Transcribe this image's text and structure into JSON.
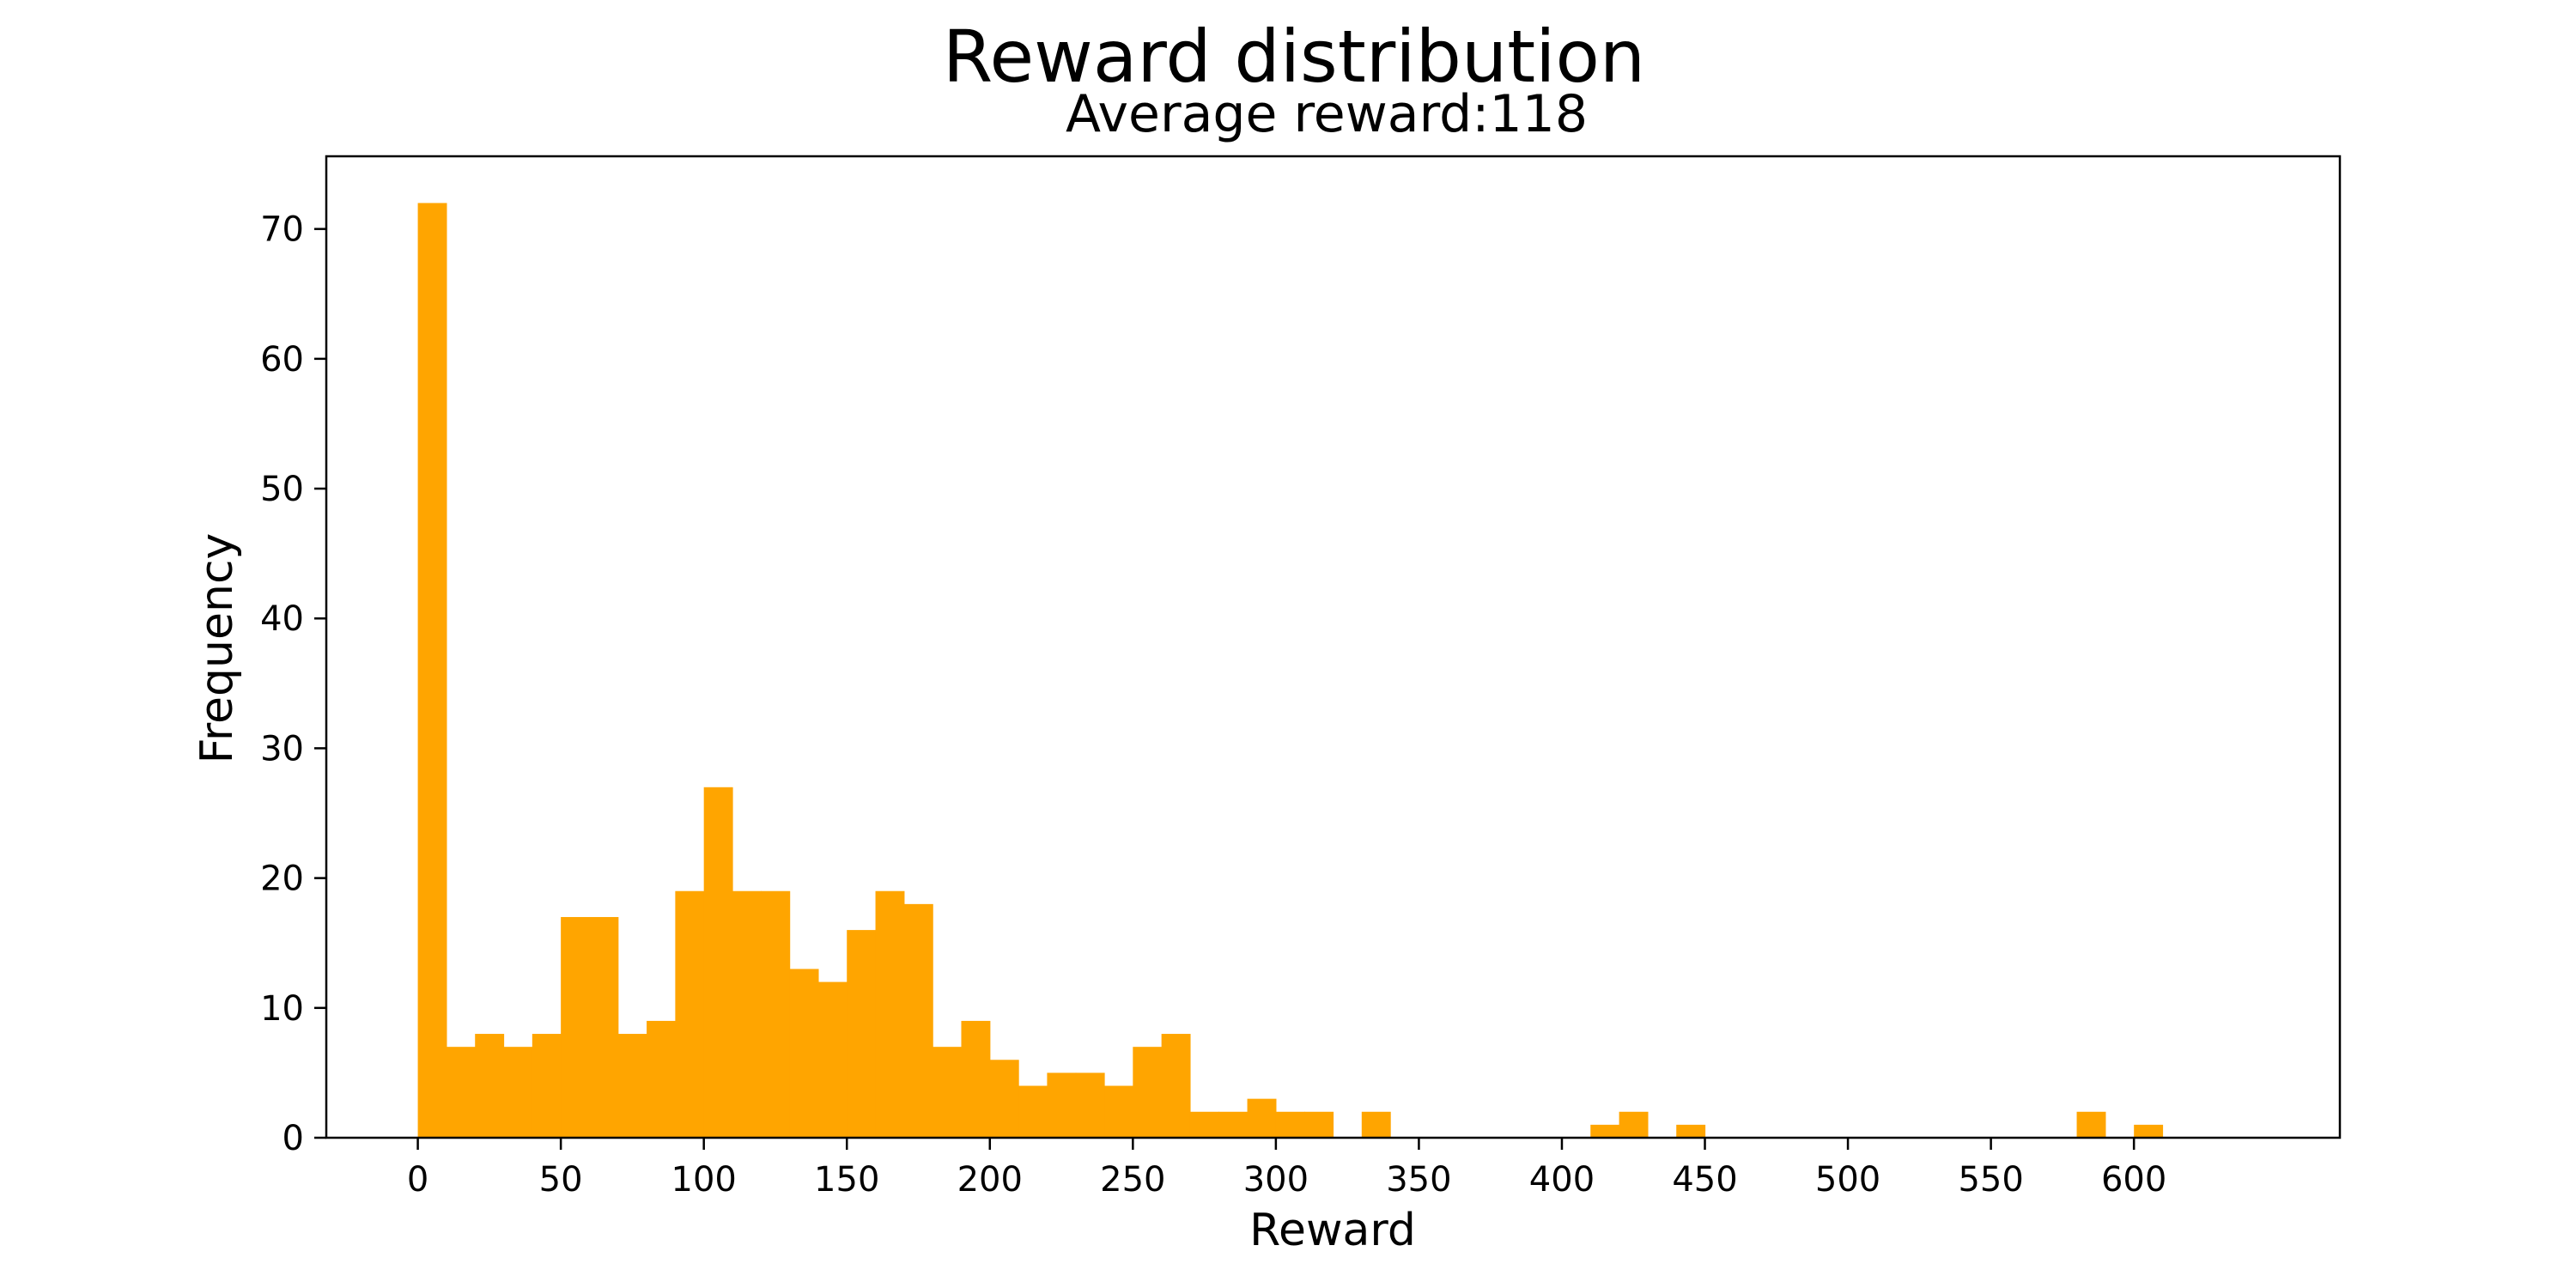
{
  "chart_data": {
    "type": "bar",
    "title": "Reward distribution",
    "subtitle": "Average reward:118",
    "xlabel": "Reward",
    "ylabel": "Frequency",
    "bar_color": "#FFA500",
    "bin_width": 10,
    "xlim": [
      -32,
      672
    ],
    "ylim": [
      0,
      75.6
    ],
    "xticks": [
      0,
      50,
      100,
      150,
      200,
      250,
      300,
      350,
      400,
      450,
      500,
      550,
      600
    ],
    "yticks": [
      0,
      10,
      20,
      30,
      40,
      50,
      60,
      70
    ],
    "bins": [
      {
        "x0": 0,
        "x1": 10,
        "count": 72
      },
      {
        "x0": 10,
        "x1": 20,
        "count": 7
      },
      {
        "x0": 20,
        "x1": 30,
        "count": 8
      },
      {
        "x0": 30,
        "x1": 40,
        "count": 7
      },
      {
        "x0": 40,
        "x1": 50,
        "count": 8
      },
      {
        "x0": 50,
        "x1": 60,
        "count": 17
      },
      {
        "x0": 60,
        "x1": 70,
        "count": 17
      },
      {
        "x0": 70,
        "x1": 80,
        "count": 8
      },
      {
        "x0": 80,
        "x1": 90,
        "count": 9
      },
      {
        "x0": 90,
        "x1": 100,
        "count": 19
      },
      {
        "x0": 100,
        "x1": 110,
        "count": 27
      },
      {
        "x0": 110,
        "x1": 120,
        "count": 19
      },
      {
        "x0": 120,
        "x1": 130,
        "count": 19
      },
      {
        "x0": 130,
        "x1": 140,
        "count": 13
      },
      {
        "x0": 140,
        "x1": 150,
        "count": 12
      },
      {
        "x0": 150,
        "x1": 160,
        "count": 16
      },
      {
        "x0": 160,
        "x1": 170,
        "count": 19
      },
      {
        "x0": 170,
        "x1": 180,
        "count": 18
      },
      {
        "x0": 180,
        "x1": 190,
        "count": 7
      },
      {
        "x0": 190,
        "x1": 200,
        "count": 9
      },
      {
        "x0": 200,
        "x1": 210,
        "count": 6
      },
      {
        "x0": 210,
        "x1": 220,
        "count": 4
      },
      {
        "x0": 220,
        "x1": 230,
        "count": 5
      },
      {
        "x0": 230,
        "x1": 240,
        "count": 5
      },
      {
        "x0": 240,
        "x1": 250,
        "count": 4
      },
      {
        "x0": 250,
        "x1": 260,
        "count": 7
      },
      {
        "x0": 260,
        "x1": 270,
        "count": 8
      },
      {
        "x0": 270,
        "x1": 280,
        "count": 2
      },
      {
        "x0": 280,
        "x1": 290,
        "count": 2
      },
      {
        "x0": 290,
        "x1": 300,
        "count": 3
      },
      {
        "x0": 300,
        "x1": 310,
        "count": 2
      },
      {
        "x0": 310,
        "x1": 320,
        "count": 2
      },
      {
        "x0": 330,
        "x1": 340,
        "count": 2
      },
      {
        "x0": 410,
        "x1": 420,
        "count": 1
      },
      {
        "x0": 420,
        "x1": 430,
        "count": 2
      },
      {
        "x0": 440,
        "x1": 450,
        "count": 1
      },
      {
        "x0": 580,
        "x1": 590,
        "count": 2
      },
      {
        "x0": 600,
        "x1": 610,
        "count": 1
      }
    ]
  }
}
